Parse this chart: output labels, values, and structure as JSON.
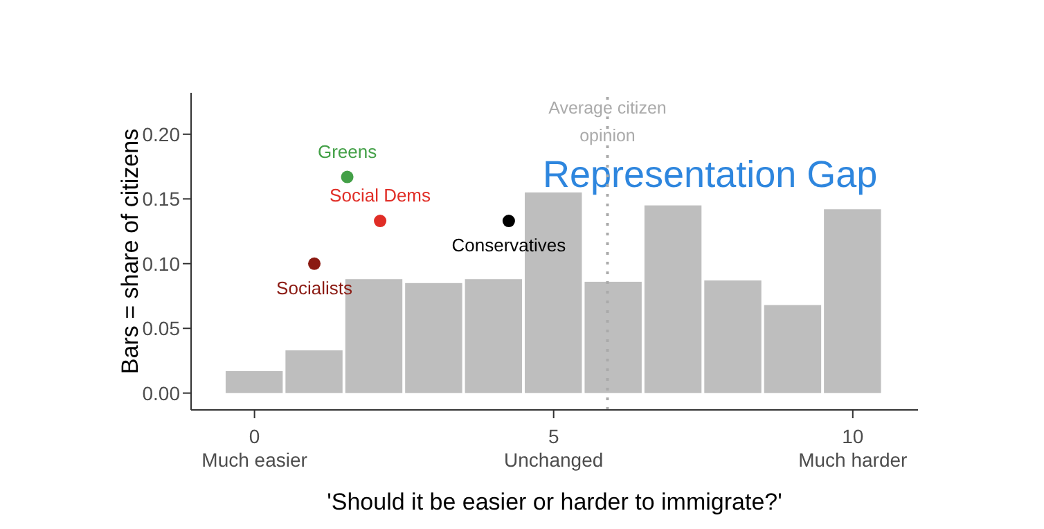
{
  "chart_data": {
    "type": "histogram",
    "xlabel": "'Should it be easier or harder to immigrate?'",
    "ylabel": "Bars = share of citizens",
    "color": "#bebebe",
    "bins": [
      -0.5,
      0.5,
      1.5,
      2.5,
      3.5,
      4.5,
      5.5,
      6.5,
      7.5,
      8.5,
      9.5,
      10.5
    ],
    "values": [
      0.017,
      0.033,
      0.088,
      0.085,
      0.088,
      0.155,
      0.086,
      0.145,
      0.087,
      0.068,
      0.142
    ],
    "series": [
      {
        "type": "scatter",
        "name": "Greens",
        "color": "#43a047",
        "x": [
          1.55
        ],
        "values": [
          0.167
        ]
      },
      {
        "type": "scatter",
        "name": "Social Dems",
        "color": "#e02d26",
        "x": [
          2.1
        ],
        "values": [
          0.133
        ]
      },
      {
        "type": "scatter",
        "name": "Conservatives",
        "color": "#000000",
        "x": [
          4.25
        ],
        "values": [
          0.133
        ]
      },
      {
        "type": "scatter",
        "name": "Socialists",
        "color": "#8b1a12",
        "x": [
          1.0
        ],
        "values": [
          0.1
        ]
      }
    ],
    "marker": "circle",
    "xlim": [
      -1.06,
      11.09
    ],
    "xticks": [
      {
        "value": 0,
        "label": "0\nMuch easier"
      },
      {
        "value": 5,
        "label": "5\nUnchanged"
      },
      {
        "value": 10,
        "label": "10\nMuch harder"
      }
    ],
    "ylim": [
      -0.013,
      0.232
    ],
    "yticks": [
      {
        "value": 0,
        "label": "0.00"
      },
      {
        "value": 0.05,
        "label": "0.05"
      },
      {
        "value": 0.1,
        "label": "0.10"
      },
      {
        "value": 0.15,
        "label": "0.15"
      },
      {
        "value": 0.2,
        "label": "0.20"
      }
    ],
    "ref_lines": [
      {
        "axis": "x",
        "value": 5.9,
        "label": "Average citizen opinion",
        "color": "#aaaaaa",
        "line_style": "dotted"
      }
    ],
    "annotations": [
      "Representation Gap"
    ],
    "grid": false,
    "legend": false
  }
}
